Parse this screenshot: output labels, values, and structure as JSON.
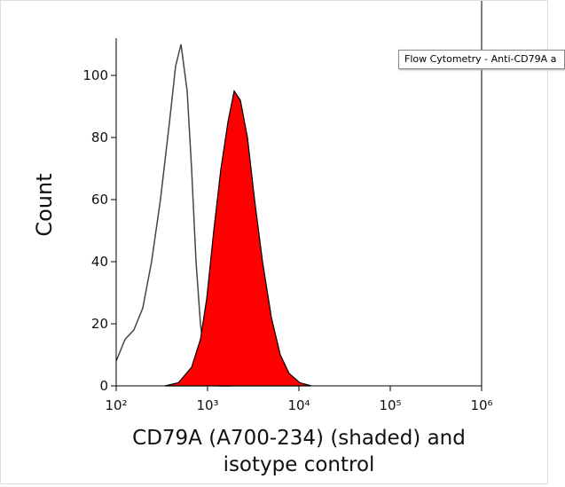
{
  "chart_data": {
    "type": "line",
    "xscale": "log",
    "tooltip": "Flow Cytometry - Anti-CD79A a",
    "xlabel": "CD79A (A700-234) (shaded) and isotype control",
    "ylabel": "Count",
    "xlim": [
      100,
      1000000
    ],
    "ylim": [
      0,
      112
    ],
    "xticks": [
      {
        "value": 100,
        "label": "10²"
      },
      {
        "value": 1000,
        "label": "10³"
      },
      {
        "value": 10000,
        "label": "10⁴"
      },
      {
        "value": 100000,
        "label": "10⁵"
      },
      {
        "value": 1000000,
        "label": "10⁶"
      }
    ],
    "yticks": [
      0,
      20,
      40,
      60,
      80,
      100
    ],
    "series": [
      {
        "color": "#444444",
        "fill": false,
        "x": [
          100,
          125,
          156,
          195,
          244,
          305,
          383,
          447,
          512,
          598,
          668,
          748,
          836,
          935,
          1094,
          1309,
          1828
        ],
        "values": [
          8,
          15,
          18,
          25,
          40,
          60,
          85,
          103,
          110,
          95,
          70,
          40,
          20,
          8,
          2,
          0,
          0
        ]
      },
      {
        "color": "#ff0000",
        "fill": true,
        "x": [
          342,
          479,
          668,
          836,
          977,
          1170,
          1400,
          1672,
          1954,
          2285,
          2735,
          3273,
          4000,
          5000,
          6250,
          7820,
          10230,
          13680
        ],
        "values": [
          0,
          1,
          6,
          15,
          28,
          50,
          70,
          85,
          95,
          92,
          80,
          60,
          40,
          22,
          10,
          4,
          1,
          0
        ]
      }
    ]
  }
}
